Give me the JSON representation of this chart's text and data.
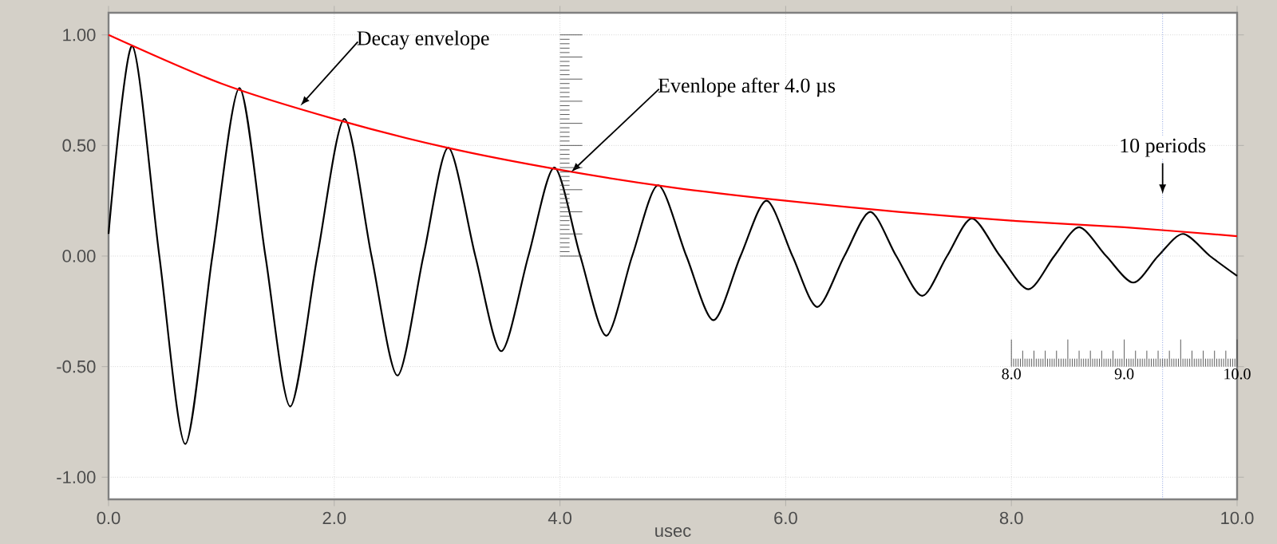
{
  "chart_data": {
    "type": "line",
    "xlabel": "usec",
    "xlim": [
      0,
      10
    ],
    "ylim": [
      -1.1,
      1.1
    ],
    "xticks": [
      {
        "value": 0,
        "label": "0.0"
      },
      {
        "value": 2,
        "label": "2.0"
      },
      {
        "value": 4,
        "label": "4.0"
      },
      {
        "value": 6,
        "label": "6.0"
      },
      {
        "value": 8,
        "label": "8.0"
      },
      {
        "value": 10,
        "label": "10.0"
      }
    ],
    "yticks": [
      {
        "value": -1,
        "label": "-1.00"
      },
      {
        "value": -0.5,
        "label": "-0.50"
      },
      {
        "value": 0,
        "label": "0.00"
      },
      {
        "value": 0.5,
        "label": "0.50"
      },
      {
        "value": 1,
        "label": "1.00"
      }
    ],
    "grid": true,
    "marker": "none",
    "series": [
      {
        "color": "#000000",
        "x": [
          0,
          0.21,
          0.45,
          0.68,
          0.92,
          1.16,
          1.39,
          1.61,
          1.85,
          2.09,
          2.33,
          2.56,
          2.79,
          3.01,
          3.25,
          3.48,
          3.72,
          3.95,
          4.18,
          4.41,
          4.64,
          4.87,
          5.12,
          5.36,
          5.6,
          5.83,
          6.06,
          6.28,
          6.52,
          6.75,
          6.98,
          7.21,
          7.43,
          7.65,
          7.9,
          8.15,
          8.38,
          8.6,
          8.84,
          9.08,
          9.3,
          9.52,
          9.76,
          10
        ],
        "values": [
          0.1,
          0.95,
          0,
          -0.85,
          0,
          0.76,
          0,
          -0.68,
          0,
          0.62,
          0,
          -0.54,
          0,
          0.49,
          0,
          -0.43,
          0,
          0.4,
          0,
          -0.36,
          0,
          0.32,
          0,
          -0.29,
          0,
          0.25,
          0,
          -0.23,
          0,
          0.2,
          0,
          -0.18,
          0,
          0.17,
          0,
          -0.15,
          0,
          0.13,
          0,
          -0.12,
          0,
          0.1,
          0,
          -0.09
        ]
      },
      {
        "color": "#ff0000",
        "x": [
          0,
          1,
          2,
          3,
          4,
          5,
          6,
          7,
          8,
          9,
          10
        ],
        "values": [
          1.0,
          0.78,
          0.62,
          0.49,
          0.39,
          0.31,
          0.25,
          0.2,
          0.16,
          0.13,
          0.09
        ]
      }
    ],
    "ref_lines": [
      {
        "axis": "x",
        "value": 9.34,
        "label": "10 periods",
        "color": "#4f6fd0",
        "line_style": "dotted"
      }
    ],
    "annotations": [
      {
        "text": "Decay envelope",
        "x": 1.7,
        "y": 0.68
      },
      {
        "text": "Evenlope after 4.0 µs",
        "x": 4.1,
        "y": 0.38
      },
      "8.0",
      "9.0",
      "10.0"
    ]
  }
}
